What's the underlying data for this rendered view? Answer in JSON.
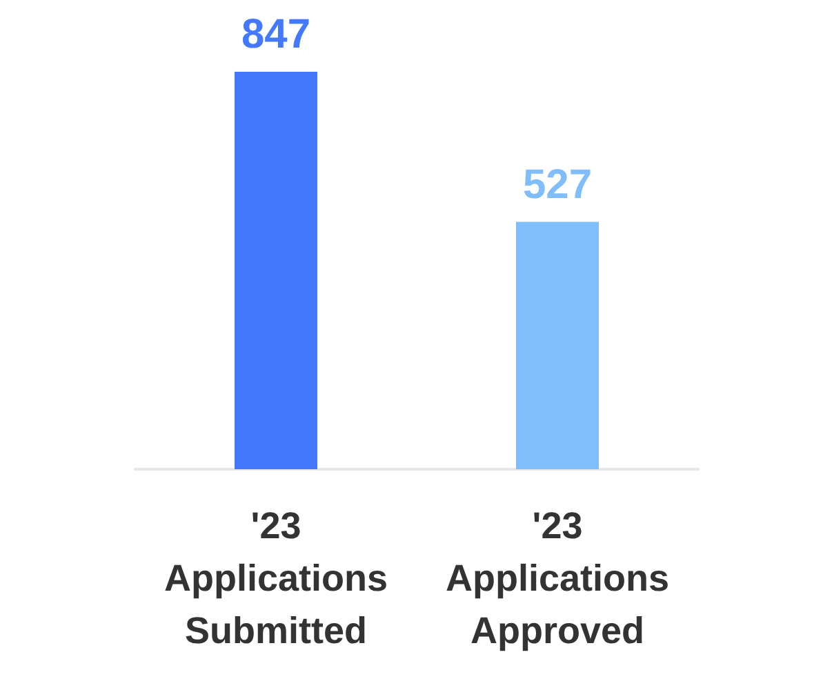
{
  "chart_data": {
    "type": "bar",
    "categories": [
      "'23\nApplications\nSubmitted",
      "'23\nApplications\nApproved"
    ],
    "values": [
      847,
      527
    ],
    "colors": [
      "#4479fe",
      "#80bdfd"
    ],
    "data_labels": true
  }
}
